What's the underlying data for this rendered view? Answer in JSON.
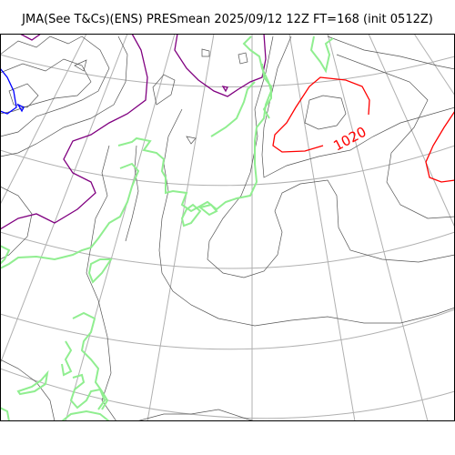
{
  "map": {
    "title": "JMA(See T&Cs)(ENS) PRESmean 2025/09/12 12Z FT=168 (init 0512Z)",
    "isobar_labels": [
      "1020"
    ],
    "colors": {
      "isobar": "#555555",
      "high_isobar": "#ff0000",
      "low_isobar": "#0000ff",
      "mid_isobar": "#800080",
      "coastline": "#90ee90",
      "graticule": "#b0b0b0",
      "frame": "#000000"
    }
  }
}
